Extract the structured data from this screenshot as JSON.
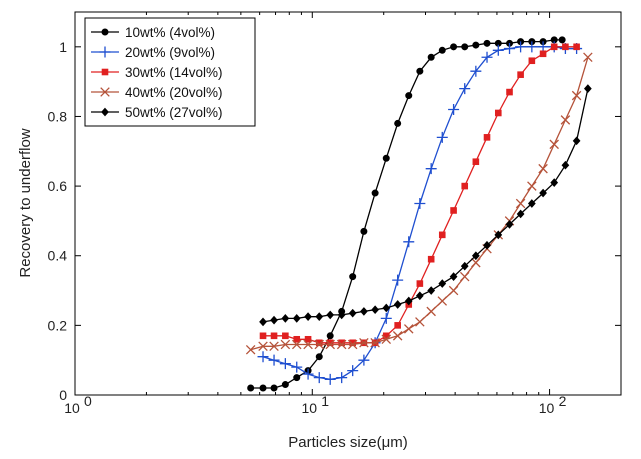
{
  "chart_data": {
    "type": "line",
    "xlabel": "Particles size(μm)",
    "ylabel": "Recovery to underflow",
    "xscale": "log",
    "xlim": [
      1,
      200
    ],
    "ylim": [
      0,
      1.1
    ],
    "x_ticks": [
      1,
      10,
      100
    ],
    "x_tick_labels": [
      [
        "10",
        "0"
      ],
      [
        "10",
        "1"
      ],
      [
        "10",
        "2"
      ]
    ],
    "y_ticks": [
      0,
      0.2,
      0.4,
      0.6,
      0.8,
      1
    ],
    "y_tick_labels": [
      "0",
      "0.2",
      "0.4",
      "0.6",
      "0.8",
      "1"
    ],
    "legend_position": "top-left",
    "grid": false,
    "series": [
      {
        "name": "10wt% (4vol%)",
        "color": "#000000",
        "marker": "circle",
        "x": [
          5.5,
          6.2,
          6.9,
          7.7,
          8.6,
          9.6,
          10.7,
          11.9,
          13.3,
          14.8,
          16.5,
          18.4,
          20.5,
          22.9,
          25.5,
          28.4,
          31.7,
          35.3,
          39.4,
          43.9,
          48.9,
          54.5,
          60.8,
          67.8,
          75.5,
          84.2,
          93.9,
          104.6,
          113
        ],
        "y": [
          0.02,
          0.02,
          0.02,
          0.03,
          0.05,
          0.07,
          0.11,
          0.17,
          0.24,
          0.34,
          0.47,
          0.58,
          0.68,
          0.78,
          0.86,
          0.93,
          0.97,
          0.99,
          1.0,
          1.0,
          1.005,
          1.01,
          1.01,
          1.01,
          1.015,
          1.015,
          1.015,
          1.02,
          1.02
        ]
      },
      {
        "name": "20wt% (9vol%)",
        "color": "#1f4fd0",
        "marker": "plus",
        "x": [
          6.2,
          6.9,
          7.7,
          8.6,
          9.6,
          10.7,
          11.9,
          13.3,
          14.8,
          16.5,
          18.4,
          20.5,
          22.9,
          25.5,
          28.4,
          31.7,
          35.3,
          39.4,
          43.9,
          48.9,
          54.5,
          60.8,
          67.8,
          75.5,
          84.2,
          93.9,
          104.6,
          116.6,
          130
        ],
        "y": [
          0.11,
          0.1,
          0.09,
          0.08,
          0.06,
          0.05,
          0.045,
          0.05,
          0.07,
          0.1,
          0.15,
          0.22,
          0.33,
          0.44,
          0.55,
          0.65,
          0.74,
          0.82,
          0.88,
          0.93,
          0.97,
          0.99,
          0.995,
          1.0,
          1.0,
          1.0,
          1.0,
          0.995,
          0.995
        ]
      },
      {
        "name": "30wt% (14vol%)",
        "color": "#e02020",
        "marker": "square",
        "x": [
          6.2,
          6.9,
          7.7,
          8.6,
          9.6,
          10.7,
          11.9,
          13.3,
          14.8,
          16.5,
          18.4,
          20.5,
          22.9,
          25.5,
          28.4,
          31.7,
          35.3,
          39.4,
          43.9,
          48.9,
          54.5,
          60.8,
          67.8,
          75.5,
          84.2,
          93.9,
          104.6,
          116.6,
          130
        ],
        "y": [
          0.17,
          0.17,
          0.17,
          0.16,
          0.16,
          0.15,
          0.15,
          0.15,
          0.15,
          0.15,
          0.15,
          0.17,
          0.2,
          0.26,
          0.32,
          0.39,
          0.46,
          0.53,
          0.6,
          0.67,
          0.74,
          0.81,
          0.87,
          0.92,
          0.96,
          0.98,
          1.0,
          1.0,
          1.0
        ]
      },
      {
        "name": "40wt% (20vol%)",
        "color": "#b5533a",
        "marker": "x",
        "x": [
          5.5,
          6.2,
          6.9,
          7.7,
          8.6,
          9.6,
          10.7,
          11.9,
          13.3,
          14.8,
          16.5,
          18.4,
          20.5,
          22.9,
          25.5,
          28.4,
          31.7,
          35.3,
          39.4,
          43.9,
          48.9,
          54.5,
          60.8,
          67.8,
          75.5,
          84.2,
          93.9,
          104.6,
          116.6,
          130,
          145
        ],
        "y": [
          0.13,
          0.14,
          0.14,
          0.145,
          0.145,
          0.145,
          0.145,
          0.145,
          0.145,
          0.145,
          0.15,
          0.15,
          0.16,
          0.17,
          0.19,
          0.21,
          0.24,
          0.27,
          0.3,
          0.34,
          0.38,
          0.42,
          0.46,
          0.5,
          0.55,
          0.6,
          0.65,
          0.72,
          0.79,
          0.86,
          0.97
        ]
      },
      {
        "name": "50wt% (27vol%)",
        "color": "#000000",
        "marker": "diamond",
        "x": [
          6.2,
          6.9,
          7.7,
          8.6,
          9.6,
          10.7,
          11.9,
          13.3,
          14.8,
          16.5,
          18.4,
          20.5,
          22.9,
          25.5,
          28.4,
          31.7,
          35.3,
          39.4,
          43.9,
          48.9,
          54.5,
          60.8,
          67.8,
          75.5,
          84.2,
          93.9,
          104.6,
          116.6,
          130,
          145
        ],
        "y": [
          0.21,
          0.215,
          0.22,
          0.22,
          0.225,
          0.225,
          0.23,
          0.23,
          0.235,
          0.24,
          0.245,
          0.25,
          0.26,
          0.27,
          0.285,
          0.3,
          0.32,
          0.34,
          0.37,
          0.4,
          0.43,
          0.46,
          0.49,
          0.52,
          0.55,
          0.58,
          0.61,
          0.66,
          0.73,
          0.88
        ]
      }
    ]
  }
}
